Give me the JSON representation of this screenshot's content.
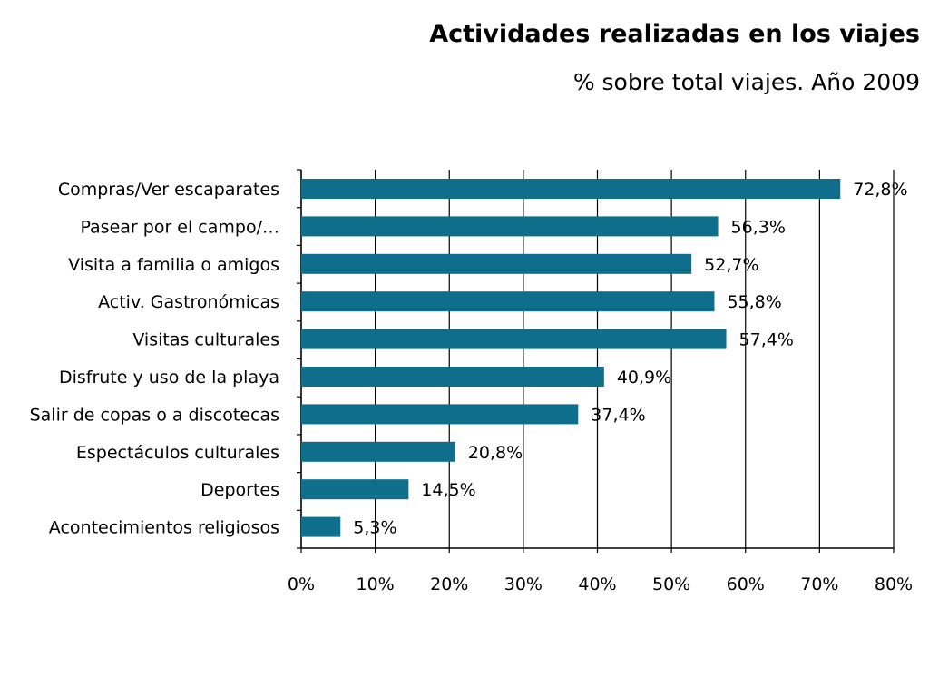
{
  "header": {
    "title": "Actividades realizadas en los viajes",
    "subtitle": "% sobre total viajes. Año 2009"
  },
  "colors": {
    "bar": "#0E6E8C",
    "grid": "#000000",
    "text": "#000000"
  },
  "chart_data": {
    "type": "bar",
    "orientation": "horizontal",
    "title": "Actividades realizadas en los viajes",
    "subtitle": "% sobre total viajes. Año 2009",
    "categories": [
      "Compras/Ver escaparates",
      "Pasear por el campo/…",
      "Visita a familia  o amigos",
      "Activ. Gastronómicas",
      "Visitas culturales",
      "Disfrute  y uso de la playa",
      "Salir de copas o a discotecas",
      "Espectáculos culturales",
      "Deportes",
      "Acontecimientos religiosos"
    ],
    "values": [
      72.8,
      56.3,
      52.7,
      55.8,
      57.4,
      40.9,
      37.4,
      20.8,
      14.5,
      5.3
    ],
    "data_labels": [
      "72,8%",
      "56,3%",
      "52,7%",
      "55,8%",
      "57,4%",
      "40,9%",
      "37,4%",
      "20,8%",
      "14,5%",
      "5,3%"
    ],
    "xlim": [
      0,
      80
    ],
    "xticks": [
      0,
      10,
      20,
      30,
      40,
      50,
      60,
      70,
      80
    ],
    "xtick_labels": [
      "0%",
      "10%",
      "20%",
      "30%",
      "40%",
      "50%",
      "60%",
      "70%",
      "80%"
    ],
    "grid": true,
    "legend": "none",
    "xlabel": "",
    "ylabel": ""
  }
}
